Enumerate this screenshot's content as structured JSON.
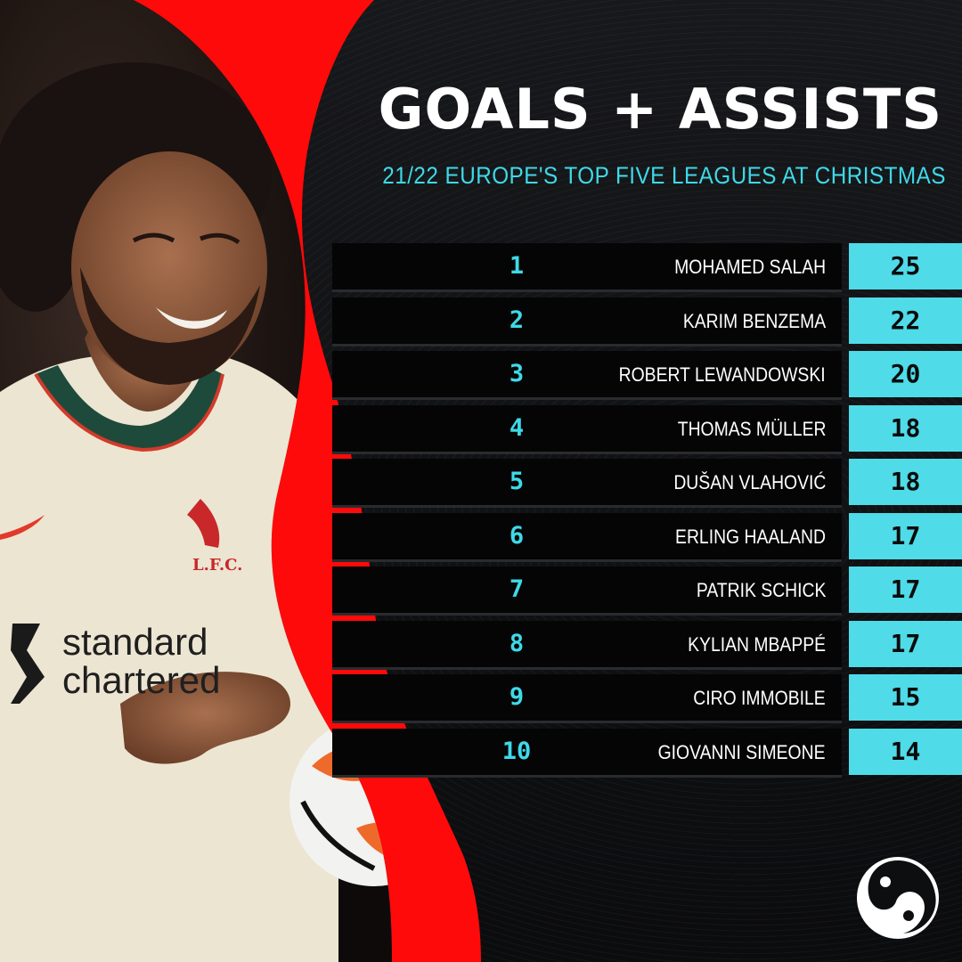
{
  "header": {
    "title": "GOALS + ASSISTS",
    "subtitle": "21/22 EUROPE'S TOP FIVE LEAGUES AT CHRISTMAS"
  },
  "colors": {
    "accent": "#4fdbe8",
    "accent_text": "#3fd9e8",
    "red": "#ff0a0a",
    "background": "#0d0e10",
    "row_bg": "#050506"
  },
  "photo": {
    "jersey_badge": "L.F.C.",
    "sponsor_line1": "standard",
    "sponsor_line2": "chartered"
  },
  "rows": [
    {
      "rank": "1",
      "name": "MOHAMED SALAH",
      "value": "25"
    },
    {
      "rank": "2",
      "name": "KARIM BENZEMA",
      "value": "22"
    },
    {
      "rank": "3",
      "name": "ROBERT LEWANDOWSKI",
      "value": "20"
    },
    {
      "rank": "4",
      "name": "THOMAS MÜLLER",
      "value": "18"
    },
    {
      "rank": "5",
      "name": "DUŠAN VLAHOVIĆ",
      "value": "18"
    },
    {
      "rank": "6",
      "name": "ERLING HAALAND",
      "value": "17"
    },
    {
      "rank": "7",
      "name": "PATRIK SCHICK",
      "value": "17"
    },
    {
      "rank": "8",
      "name": "KYLIAN MBAPPÉ",
      "value": "17"
    },
    {
      "rank": "9",
      "name": "CIRO IMMOBILE",
      "value": "15"
    },
    {
      "rank": "10",
      "name": "GIOVANNI SIMEONE",
      "value": "14"
    }
  ],
  "logo": {
    "icon": "yin-yang-swirl-icon"
  }
}
